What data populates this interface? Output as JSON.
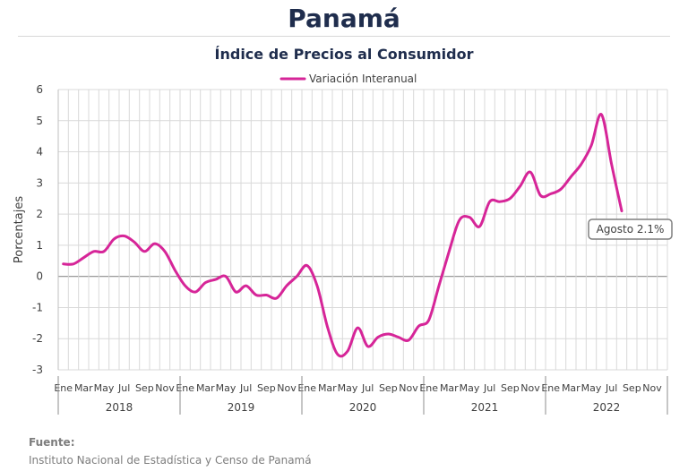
{
  "header": {
    "title": "Panamá",
    "subtitle": "Índice de Precios al Consumidor"
  },
  "footer": {
    "label": "Fuente:",
    "text": "Instituto Nacional de Estadística y Censo de Panamá"
  },
  "colors": {
    "series": "#d62598",
    "title": "#1f2d4d",
    "grid": "#d9d9d9",
    "zero_line": "#8c8c8c"
  },
  "chart_data": {
    "type": "line",
    "title": "Índice de Precios al Consumidor",
    "ylabel": "Porcentajes",
    "xlabel": "",
    "ylim": [
      -3,
      6
    ],
    "yticks": [
      6,
      5,
      4,
      3,
      2,
      1,
      0,
      -1,
      -2,
      -3
    ],
    "grid": true,
    "legend_position": "top-center",
    "month_tick_labels": [
      "Ene",
      "Mar",
      "May",
      "Jul",
      "Sep",
      "Nov"
    ],
    "years": [
      "2018",
      "2019",
      "2020",
      "2021",
      "2022"
    ],
    "x": [
      "2018-01",
      "2018-02",
      "2018-03",
      "2018-04",
      "2018-05",
      "2018-06",
      "2018-07",
      "2018-08",
      "2018-09",
      "2018-10",
      "2018-11",
      "2018-12",
      "2019-01",
      "2019-02",
      "2019-03",
      "2019-04",
      "2019-05",
      "2019-06",
      "2019-07",
      "2019-08",
      "2019-09",
      "2019-10",
      "2019-11",
      "2019-12",
      "2020-01",
      "2020-02",
      "2020-03",
      "2020-04",
      "2020-05",
      "2020-06",
      "2020-07",
      "2020-08",
      "2020-09",
      "2020-10",
      "2020-11",
      "2020-12",
      "2021-01",
      "2021-02",
      "2021-03",
      "2021-04",
      "2021-05",
      "2021-06",
      "2021-07",
      "2021-08",
      "2021-09",
      "2021-10",
      "2021-11",
      "2021-12",
      "2022-01",
      "2022-02",
      "2022-03",
      "2022-04",
      "2022-05",
      "2022-06",
      "2022-07",
      "2022-08"
    ],
    "series": [
      {
        "name": "Variación Interanual",
        "values": [
          0.4,
          0.4,
          0.6,
          0.8,
          0.8,
          1.2,
          1.3,
          1.1,
          0.8,
          1.05,
          0.8,
          0.2,
          -0.3,
          -0.5,
          -0.2,
          -0.1,
          0.0,
          -0.5,
          -0.3,
          -0.6,
          -0.6,
          -0.7,
          -0.3,
          0.0,
          0.35,
          -0.3,
          -1.6,
          -2.5,
          -2.4,
          -1.65,
          -2.25,
          -1.95,
          -1.85,
          -1.95,
          -2.05,
          -1.6,
          -1.4,
          -0.3,
          0.8,
          1.8,
          1.9,
          1.6,
          2.4,
          2.4,
          2.5,
          2.9,
          3.35,
          2.6,
          2.65,
          2.8,
          3.2,
          3.6,
          4.2,
          5.2,
          3.6,
          2.1
        ]
      }
    ],
    "annotation": {
      "text": "Agosto 2.1%",
      "x": "2022-08",
      "y": 2.1
    }
  }
}
